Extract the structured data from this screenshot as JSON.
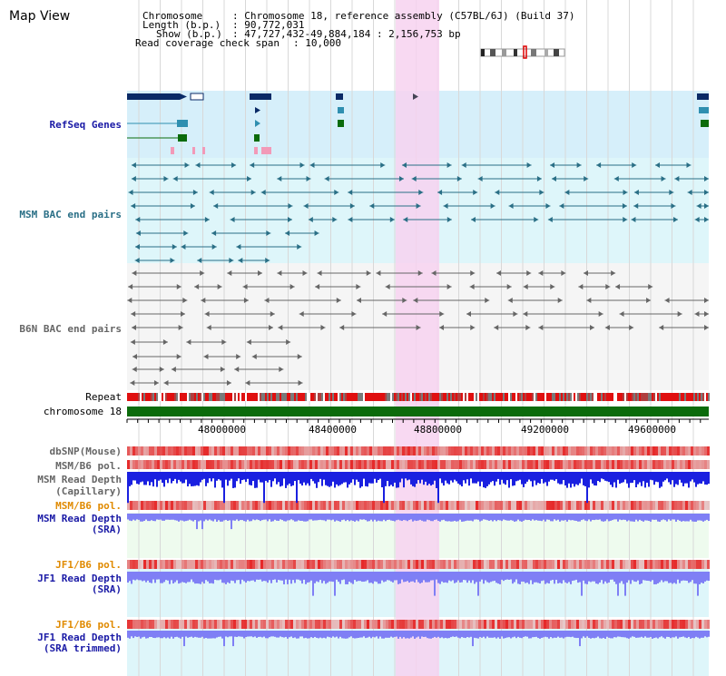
{
  "page": {
    "title": "Map View"
  },
  "header": {
    "chromosome_label": "Chromosome",
    "chromosome_value": ": Chromosome 18, reference assembly (C57BL/6J) (Build 37)",
    "length_label": "Length (b.p.)",
    "length_value": ": 90,772,031",
    "show_label": "Show (b.p.)",
    "show_value": ": 47,727,432-49,884,184 : 2,156,753 bp",
    "coverage_label": "Read coverage check span",
    "coverage_value": ": 10,000"
  },
  "tracks": {
    "refseq": "RefSeq Genes",
    "msm_bac": "MSM BAC end pairs",
    "b6n_bac": "B6N BAC end pairs",
    "repeat": "Repeat",
    "chromosome": "chromosome 18",
    "dbsnp": "dbSNP(Mouse)",
    "msm_b6_pol_1": "MSM/B6 pol.",
    "msm_read_depth_cap_1": "MSM Read Depth",
    "msm_read_depth_cap_2": "(Capillary)",
    "msm_b6_pol_2": "MSM/B6 pol.",
    "msm_read_depth_sra_1": "MSM Read Depth",
    "msm_read_depth_sra_2": "(SRA)",
    "jf1_b6_pol_1": "JF1/B6 pol.",
    "jf1_read_depth_sra_1": "JF1 Read Depth",
    "jf1_read_depth_sra_2": "(SRA)",
    "jf1_b6_pol_2": "JF1/B6 pol.",
    "jf1_read_depth_trim_1": "JF1 Read Depth",
    "jf1_read_depth_trim_2": "(SRA trimmed)"
  },
  "axis": {
    "ticks": [
      "48000000",
      "48400000",
      "48800000",
      "49200000",
      "49600000"
    ]
  },
  "colors": {
    "highlight": "#f7d2f0",
    "refseq_bg": "#d6effa",
    "msm_bg": "#def6fa",
    "b6n_bg": "#f5f5f5",
    "gene_dark": "#0a2a66",
    "gene_teal": "#2f8fb0",
    "gene_green": "#0b6b0b",
    "msm_line": "#2a6f86",
    "b6n_line": "#666666",
    "depth_blue": "#1a20e0",
    "depth_light": "#7f7ff5",
    "chromosome": "#0b6b0b"
  }
}
